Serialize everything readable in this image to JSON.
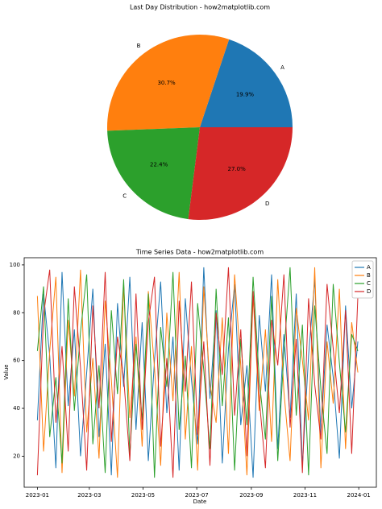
{
  "chart_data": [
    {
      "type": "pie",
      "title": "Last Day Distribution - how2matplotlib.com",
      "categories": [
        "A",
        "B",
        "C",
        "D"
      ],
      "values": [
        19.9,
        30.7,
        22.4,
        27.0
      ],
      "value_labels": [
        "19.9%",
        "30.7%",
        "22.4%",
        "27.0%"
      ],
      "colors": [
        "#1f77b4",
        "#ff7f0e",
        "#2ca02c",
        "#d62728"
      ]
    },
    {
      "type": "line",
      "title": "Time Series Data - how2matplotlib.com",
      "x_label": "Date",
      "y_label": "Value",
      "x": [
        0,
        7,
        14,
        21,
        28,
        35,
        42,
        49,
        56,
        63,
        70,
        77,
        84,
        91,
        98,
        105,
        112,
        119,
        126,
        133,
        140,
        147,
        154,
        161,
        168,
        175,
        182,
        189,
        196,
        203,
        210,
        217,
        224,
        231,
        238,
        245,
        252,
        259,
        266,
        273,
        280,
        287,
        294,
        301,
        308,
        315,
        322,
        329,
        336,
        343,
        350,
        357,
        364
      ],
      "xlim": [
        -15,
        385
      ],
      "xticks": [
        {
          "value": 0,
          "label": "2023-01"
        },
        {
          "value": 59,
          "label": "2023-03"
        },
        {
          "value": 120,
          "label": "2023-05"
        },
        {
          "value": 181,
          "label": "2023-07"
        },
        {
          "value": 243,
          "label": "2023-09"
        },
        {
          "value": 304,
          "label": "2023-11"
        },
        {
          "value": 365,
          "label": "2024-01"
        }
      ],
      "ylim": [
        7,
        103
      ],
      "yticks": [
        20,
        40,
        60,
        80,
        100
      ],
      "legend": "upper right",
      "series": [
        {
          "name": "A",
          "color": "#1f77b4",
          "values": [
            35,
            88,
            62,
            15,
            97,
            41,
            73,
            20,
            55,
            90,
            28,
            67,
            12,
            84,
            49,
            95,
            31,
            76,
            18,
            60,
            93,
            38,
            70,
            14,
            86,
            52,
            25,
            99,
            44,
            81,
            17,
            65,
            92,
            33,
            58,
            11,
            79,
            47,
            96,
            23,
            71,
            36,
            88,
            16,
            62,
            94,
            29,
            75,
            53,
            19,
            83,
            40,
            68
          ]
        },
        {
          "name": "B",
          "color": "#ff7f0e",
          "values": [
            87,
            22,
            64,
            95,
            13,
            77,
            45,
            98,
            30,
            61,
            19,
            85,
            52,
            11,
            92,
            36,
            70,
            24,
            89,
            57,
            16,
            80,
            43,
            97,
            27,
            66,
            14,
            91,
            50,
            34,
            78,
            21,
            96,
            58,
            12,
            87,
            39,
            73,
            26,
            94,
            47,
            18,
            82,
            60,
            35,
            99,
            15,
            68,
            42,
            90,
            23,
            76,
            55
          ]
        },
        {
          "name": "C",
          "color": "#2ca02c",
          "values": [
            64,
            91,
            28,
            53,
            17,
            86,
            39,
            72,
            96,
            25,
            58,
            13,
            81,
            46,
            94,
            20,
            67,
            35,
            88,
            11,
            74,
            49,
            97,
            31,
            62,
            15,
            84,
            56,
            23,
            90,
            41,
            78,
            14,
            69,
            33,
            95,
            52,
            27,
            87,
            18,
            63,
            99,
            37,
            75,
            12,
            83,
            48,
            21,
            92,
            59,
            30,
            71,
            64
          ]
        },
        {
          "name": "D",
          "color": "#d62728",
          "values": [
            12,
            79,
            98,
            34,
            66,
            22,
            91,
            57,
            14,
            83,
            40,
            97,
            26,
            70,
            53,
            18,
            88,
            31,
            76,
            95,
            24,
            61,
            11,
            85,
            47,
            93,
            29,
            68,
            16,
            80,
            54,
            99,
            37,
            73,
            20,
            89,
            44,
            15,
            77,
            58,
            96,
            32,
            69,
            13,
            86,
            50,
            27,
            92,
            65,
            38,
            81,
            21,
            87
          ]
        }
      ]
    }
  ]
}
